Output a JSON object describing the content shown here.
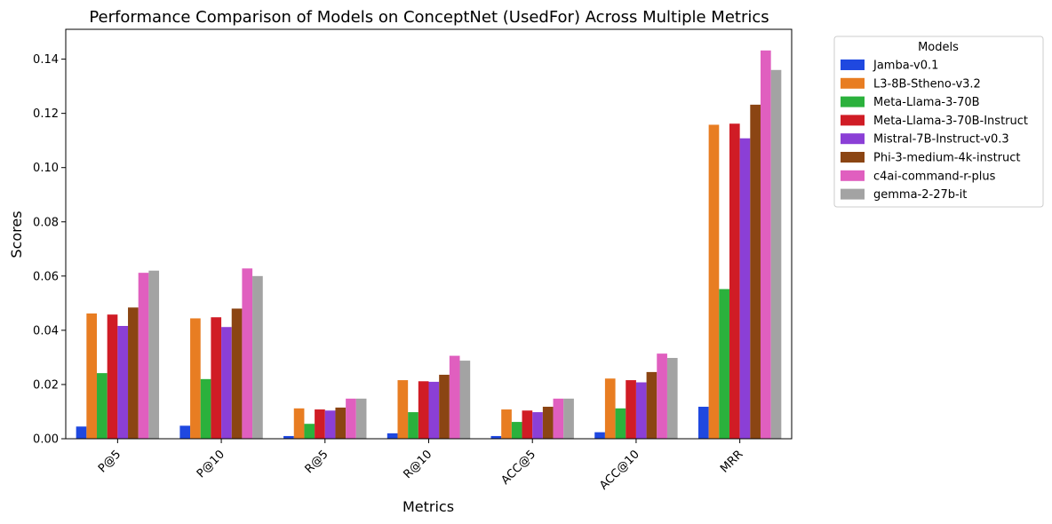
{
  "chart_data": {
    "type": "bar",
    "title": "Performance Comparison of Models on ConceptNet (UsedFor) Across Multiple Metrics",
    "xlabel": "Metrics",
    "ylabel": "Scores",
    "ylim": [
      0,
      0.151
    ],
    "yticks": [
      "0.00",
      "0.02",
      "0.04",
      "0.06",
      "0.08",
      "0.10",
      "0.12",
      "0.14"
    ],
    "grid": false,
    "legend_title": "Models",
    "legend_placement": "outside upper-right",
    "categories": [
      "P@5",
      "P@10",
      "R@5",
      "R@10",
      "ACC@5",
      "ACC@10",
      "MRR"
    ],
    "series": [
      {
        "name": "Jamba-v0.1",
        "color": "#1f48e0",
        "values": [
          0.0045,
          0.0048,
          0.001,
          0.002,
          0.001,
          0.0024,
          0.0118
        ]
      },
      {
        "name": "L3-8B-Stheno-v3.2",
        "color": "#e87d22",
        "values": [
          0.0462,
          0.0444,
          0.0112,
          0.0216,
          0.0108,
          0.0222,
          0.1158
        ]
      },
      {
        "name": "Meta-Llama-3-70B",
        "color": "#2bb13c",
        "values": [
          0.0242,
          0.022,
          0.0055,
          0.0098,
          0.0062,
          0.0112,
          0.0552
        ]
      },
      {
        "name": "Meta-Llama-3-70B-Instruct",
        "color": "#d01c25",
        "values": [
          0.0458,
          0.0448,
          0.0108,
          0.0212,
          0.0104,
          0.0216,
          0.1162
        ]
      },
      {
        "name": "Mistral-7B-Instruct-v0.3",
        "color": "#8b3fd6",
        "values": [
          0.0416,
          0.0412,
          0.0104,
          0.021,
          0.0098,
          0.0208,
          0.1108
        ]
      },
      {
        "name": "Phi-3-medium-4k-instruct",
        "color": "#8b4513",
        "values": [
          0.0484,
          0.048,
          0.0115,
          0.0236,
          0.0118,
          0.0246,
          0.1232
        ]
      },
      {
        "name": "c4ai-command-r-plus",
        "color": "#e05fbf",
        "values": [
          0.0612,
          0.0628,
          0.0148,
          0.0306,
          0.0148,
          0.0314,
          0.1432
        ]
      },
      {
        "name": "gemma-2-27b-it",
        "color": "#a3a3a3",
        "values": [
          0.062,
          0.06,
          0.0148,
          0.0288,
          0.0148,
          0.0298,
          0.136
        ]
      }
    ]
  }
}
